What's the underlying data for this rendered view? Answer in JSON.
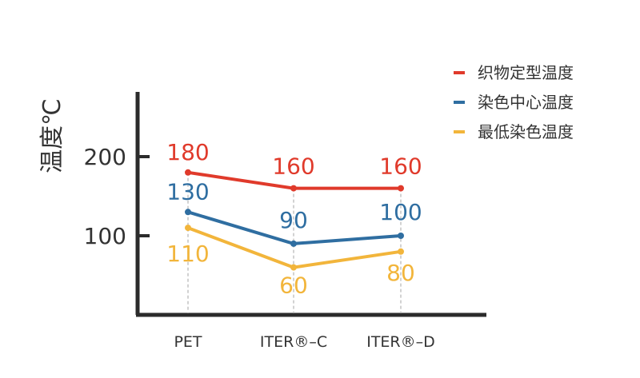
{
  "chart_data": {
    "type": "line",
    "title": "",
    "xlabel": "",
    "ylabel": "温度℃",
    "categories": [
      "PET",
      "ITER®–C",
      "ITER®–D"
    ],
    "yticks": [
      100,
      200
    ],
    "ylim": [
      0,
      280
    ],
    "grid": false,
    "legend_position": "top-right",
    "series": [
      {
        "name": "织物定型温度",
        "color": "#e03a2b",
        "values": [
          180,
          160,
          160
        ],
        "labels": [
          "180",
          "160",
          "160"
        ]
      },
      {
        "name": "染色中心温度",
        "color": "#2f6ea1",
        "values": [
          130,
          90,
          100
        ],
        "labels": [
          "130",
          "90",
          "100"
        ]
      },
      {
        "name": "最低染色温度",
        "color": "#f2b53b",
        "values": [
          110,
          60,
          80
        ],
        "labels": [
          "110",
          "60",
          "80"
        ]
      }
    ]
  }
}
